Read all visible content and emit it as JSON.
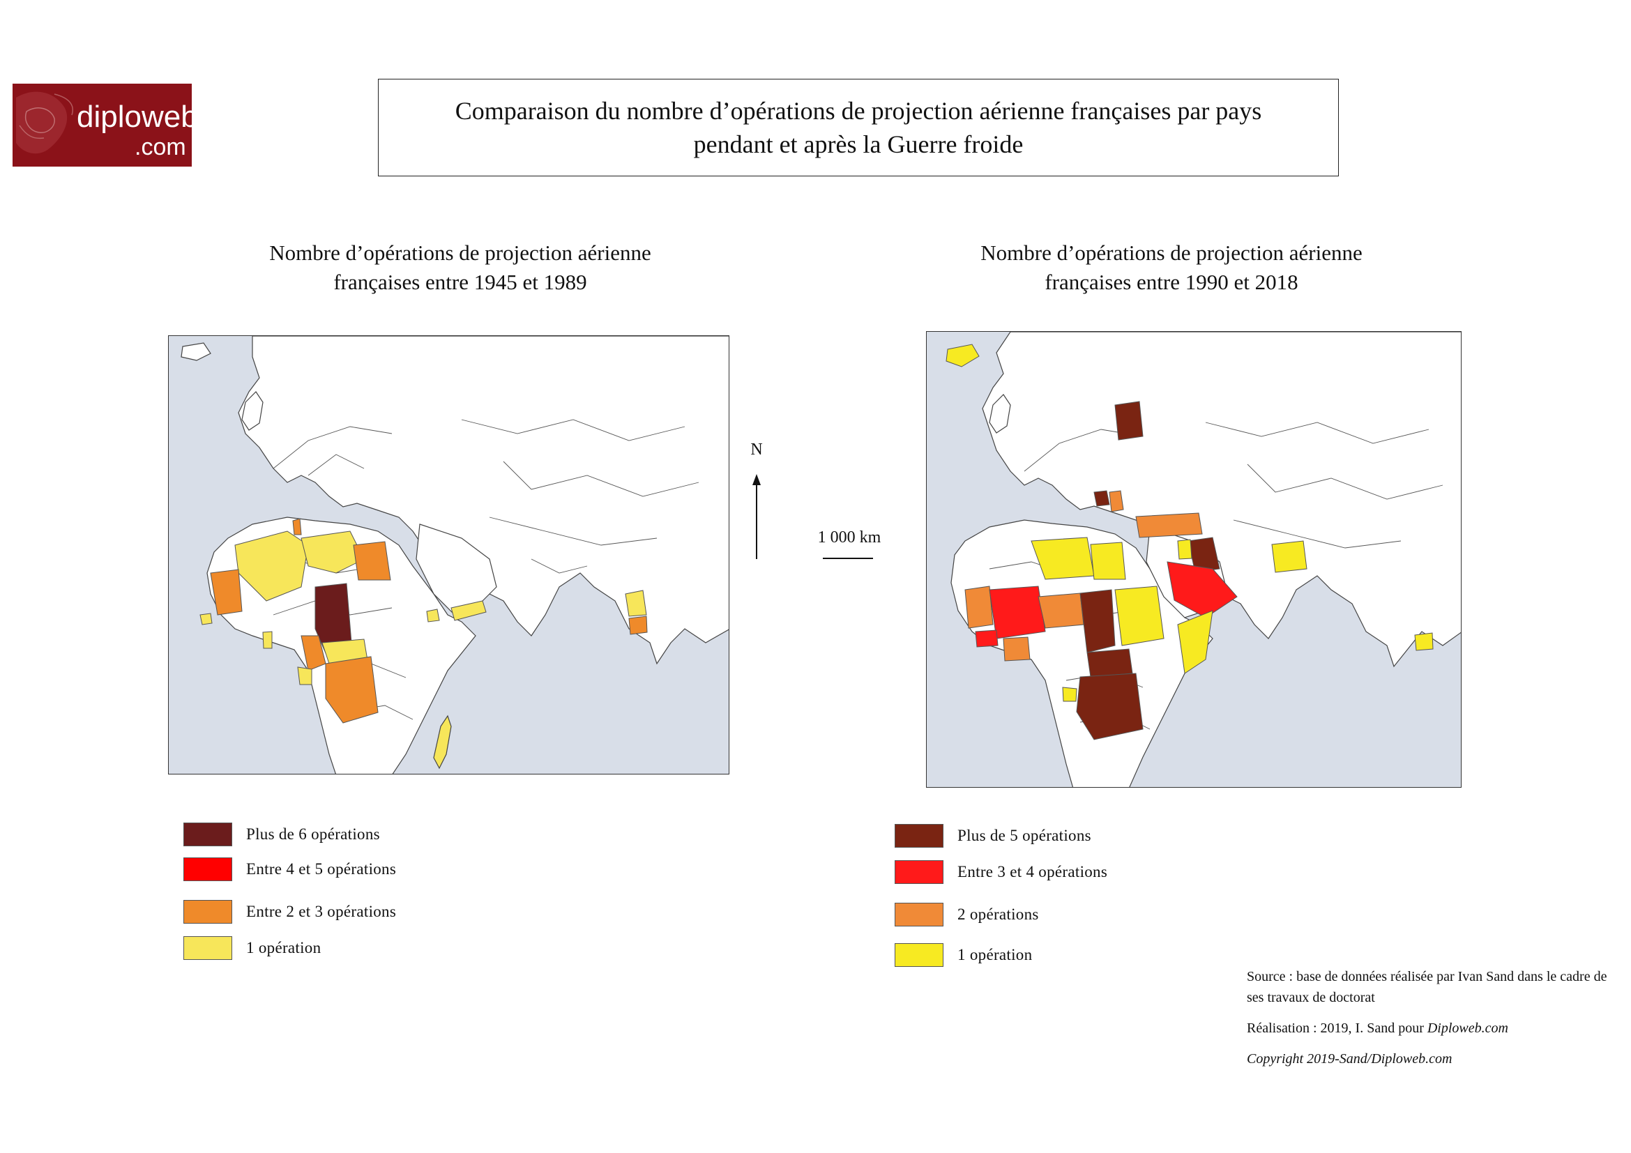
{
  "logo": {
    "name": "diploweb",
    "suffix": ".com",
    "color": "#8b1219"
  },
  "title": {
    "line1": "Comparaison du nombre d’opérations de projection aérienne françaises par pays",
    "line2": "pendant et après la Guerre froide"
  },
  "map_left": {
    "title_line1": "Nombre d’opérations de projection aérienne",
    "title_line2": "françaises entre 1945 et 1989",
    "legend": [
      {
        "label": "Plus de 6 opérations",
        "color": "#6b1c1c"
      },
      {
        "label": "Entre 4 et 5 opérations",
        "color": "#ff0000"
      },
      {
        "label": "Entre 2 et 3 opérations",
        "color": "#ef8a2a"
      },
      {
        "label": "1 opération",
        "color": "#f7e65a"
      }
    ]
  },
  "map_right": {
    "title_line1": "Nombre d’opérations de projection aérienne",
    "title_line2": "françaises entre 1990 et 2018",
    "legend": [
      {
        "label": "Plus de 5 opérations",
        "color": "#7a2412"
      },
      {
        "label": "Entre 3 et 4 opérations",
        "color": "#ff1a1a"
      },
      {
        "label": "2 opérations",
        "color": "#f08a37"
      },
      {
        "label": "1 opération",
        "color": "#f7ea22"
      }
    ]
  },
  "north_arrow": {
    "label": "N"
  },
  "scale": {
    "label": "1 000 km"
  },
  "source": {
    "line1": "Source : base de données réalisée par Ivan Sand dans le cadre de ses travaux de doctorat",
    "line2_prefix": "Réalisation : 2019, I. Sand pour ",
    "line2_italic": "Diploweb.com",
    "line3": "Copyright 2019-Sand/Diploweb.com"
  },
  "colors": {
    "sea": "#d8dee8",
    "land": "#ffffff",
    "border": "#333333"
  }
}
